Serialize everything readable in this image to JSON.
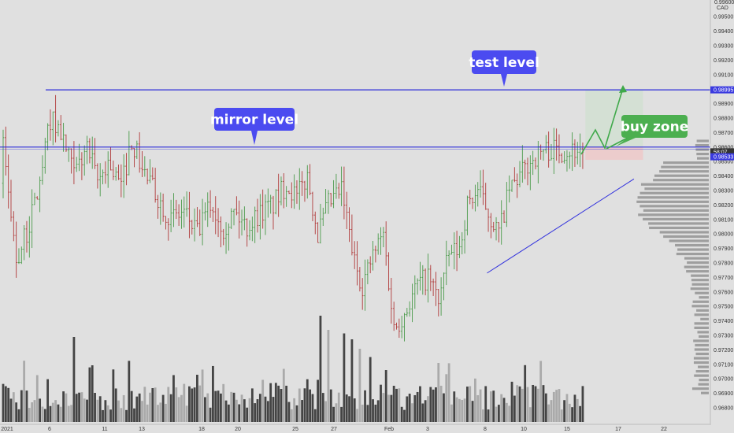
{
  "chart_data": {
    "type": "candlestick",
    "currency": "CAD",
    "colors": {
      "background": "#e0e0e0",
      "up": "#4a9a4a",
      "down": "#b03a3a",
      "level_line": "#2b2bd9",
      "trend_line": "#3333dd",
      "callout": "#4b4bf0",
      "buy_callout": "#4caf50",
      "arrow": "#3fa94a",
      "buy_zone": "#d4e0d4",
      "stop_zone": "#eccccc",
      "price_tag": "#3a3adf",
      "last_price_tag": "#333333",
      "volume_dark": "#444444",
      "volume_light": "#aaaaaa",
      "profile": "#888888"
    },
    "y_axis": {
      "ylim": [
        0.9675,
        0.9962
      ],
      "top_label": "0.99600",
      "ticks": [
        "0.99500",
        "0.99400",
        "0.99300",
        "0.99200",
        "0.99100",
        "0.99000",
        "0.98900",
        "0.98800",
        "0.98700",
        "0.98600",
        "0.98500",
        "0.98400",
        "0.98300",
        "0.98200",
        "0.98100",
        "0.98000",
        "0.97900",
        "0.97800",
        "0.97700",
        "0.97600",
        "0.97500",
        "0.97400",
        "0.97300",
        "0.97200",
        "0.97100",
        "0.97000",
        "0.96900",
        "0.96800"
      ],
      "price_tags": [
        {
          "value": 0.98995,
          "label": "0.98995",
          "style": "level"
        },
        {
          "value": 0.986,
          "label": "0.98600",
          "style": "last"
        },
        {
          "value": 0.98567,
          "label": "58:07",
          "style": "timer"
        },
        {
          "value": 0.98533,
          "label": "0.98533",
          "style": "level"
        }
      ]
    },
    "x_axis": {
      "ticks": [
        {
          "label": "2021",
          "index": 0
        },
        {
          "label": "6",
          "index": 17
        },
        {
          "label": "11",
          "index": 37
        },
        {
          "label": "13",
          "index": 48
        },
        {
          "label": "18",
          "index": 70
        },
        {
          "label": "20",
          "index": 83
        },
        {
          "label": "25",
          "index": 104
        },
        {
          "label": "27",
          "index": 118
        },
        {
          "label": "Feb",
          "index": 138
        },
        {
          "label": "3",
          "index": 151
        },
        {
          "label": "8",
          "index": 171
        },
        {
          "label": "10",
          "index": 186
        },
        {
          "label": "15",
          "index": 203
        },
        {
          "label": "17",
          "index": 218
        },
        {
          "label": "22",
          "index": 236
        }
      ]
    },
    "candles": {
      "start": 0.9835,
      "path": [
        [
          0,
          0.986
        ],
        [
          5,
          0.9782
        ],
        [
          9,
          0.98
        ],
        [
          14,
          0.9835
        ],
        [
          18,
          0.988
        ],
        [
          22,
          0.987
        ],
        [
          27,
          0.984
        ],
        [
          32,
          0.986
        ],
        [
          36,
          0.9835
        ],
        [
          40,
          0.985
        ],
        [
          45,
          0.9832
        ],
        [
          49,
          0.9865
        ],
        [
          53,
          0.9845
        ],
        [
          59,
          0.9825
        ],
        [
          64,
          0.981
        ],
        [
          69,
          0.9815
        ],
        [
          74,
          0.98
        ],
        [
          79,
          0.982
        ],
        [
          84,
          0.9805
        ],
        [
          88,
          0.9815
        ],
        [
          93,
          0.9805
        ],
        [
          98,
          0.9815
        ],
        [
          103,
          0.982
        ],
        [
          108,
          0.9835
        ],
        [
          112,
          0.9825
        ],
        [
          116,
          0.984
        ],
        [
          120,
          0.98
        ],
        [
          124,
          0.982
        ],
        [
          129,
          0.983
        ],
        [
          134,
          0.978
        ],
        [
          137,
          0.9765
        ],
        [
          141,
          0.9785
        ],
        [
          145,
          0.98
        ],
        [
          149,
          0.9735
        ],
        [
          153,
          0.9745
        ],
        [
          158,
          0.9765
        ],
        [
          162,
          0.977
        ],
        [
          166,
          0.9755
        ],
        [
          170,
          0.9785
        ],
        [
          174,
          0.979
        ],
        [
          177,
          0.982
        ],
        [
          181,
          0.983
        ],
        [
          185,
          0.9815
        ],
        [
          189,
          0.98
        ],
        [
          193,
          0.983
        ],
        [
          197,
          0.984
        ],
        [
          201,
          0.985
        ],
        [
          206,
          0.9858
        ]
      ]
    },
    "annotations": {
      "mirror_level": {
        "label": "mirror level",
        "value": 0.986
      },
      "test_level": {
        "label": "test level",
        "value": 0.98995
      },
      "buy_zone": {
        "label": "buy zone",
        "range": [
          0.98533,
          0.986
        ],
        "target": 0.98995
      },
      "trendline": {
        "from": [
          171,
          0.9773
        ],
        "to": [
          221,
          0.9838
        ]
      }
    },
    "volume": {
      "max": 100,
      "high_bars": {
        "27": 72,
        "34": 48,
        "74": 40,
        "107": 45,
        "121": 90,
        "124": 78,
        "130": 75,
        "133": 70,
        "136": 62,
        "140": 55,
        "166": 50
      }
    },
    "volume_profile": {
      "peak_price": 0.9822,
      "levels": [
        0.969,
        0.9865
      ]
    }
  }
}
